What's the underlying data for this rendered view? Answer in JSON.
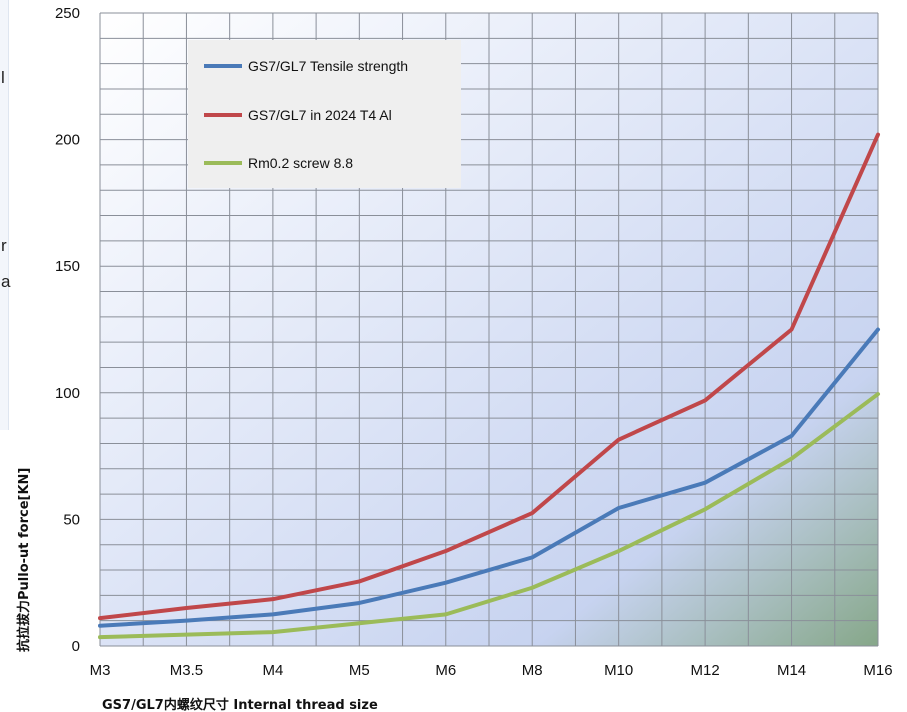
{
  "side_fragments": [
    "l",
    "r",
    "a"
  ],
  "chart_data": {
    "type": "line",
    "title": "",
    "categories": [
      "M3",
      "M3.5",
      "M4",
      "M5",
      "M6",
      "M8",
      "M10",
      "M12",
      "M14",
      "M16"
    ],
    "xlabel": "GS7/GL7内螺纹尺寸 Internal thread size",
    "ylabel": "抗拉拔力Pullo-ut force[KN]",
    "ylim": [
      0,
      250
    ],
    "yticks": [
      0,
      50,
      100,
      150,
      200,
      250
    ],
    "grid": true,
    "legend_position": "top-left",
    "series": [
      {
        "name": "GS7/GL7 Tensile strength",
        "color": "#4a7ab8",
        "values": [
          8,
          10,
          12.5,
          17,
          25,
          35,
          54.5,
          64.5,
          83,
          125
        ]
      },
      {
        "name": "GS7/GL7 in 2024 T4 Al",
        "color": "#c0474a",
        "values": [
          11,
          15,
          18.5,
          25.5,
          37.5,
          52.5,
          81.5,
          97,
          125,
          202
        ]
      },
      {
        "name": "Rm0.2 screw 8.8",
        "color": "#9bbb59",
        "values": [
          3.5,
          4.5,
          5.5,
          9,
          12.5,
          23,
          37.5,
          54,
          74,
          99.5
        ]
      }
    ]
  }
}
